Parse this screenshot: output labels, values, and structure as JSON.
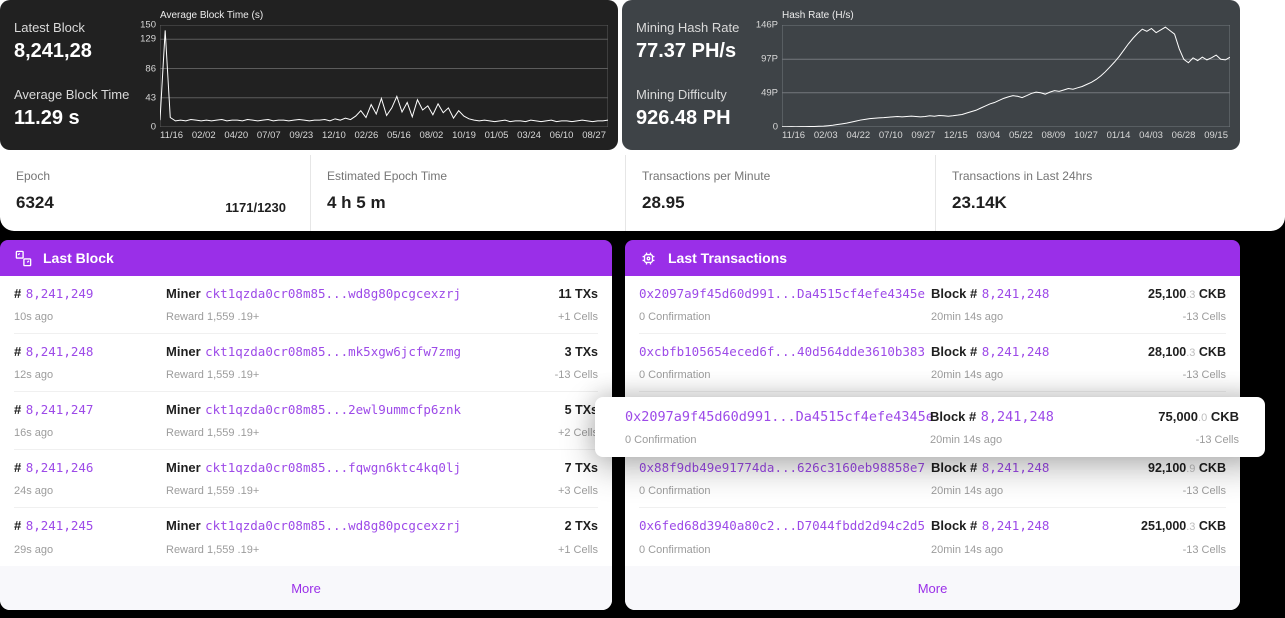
{
  "colors": {
    "accent_purple": "#9a2fe8",
    "link_purple": "#9d4ae8",
    "panel_dark": "#212121",
    "panel_slate": "#3e4347",
    "page_background": "#000000",
    "footer_band": "#f8f8fb"
  },
  "hero_left": {
    "stats": [
      {
        "label": "Latest Block",
        "value": "8,241,28"
      },
      {
        "label": "Average Block Time",
        "value": "11.29 s"
      }
    ]
  },
  "hero_right": {
    "stats": [
      {
        "label": "Mining Hash Rate",
        "value": "77.37 PH/s"
      },
      {
        "label": "Mining Difficulty",
        "value": "926.48 PH"
      }
    ]
  },
  "stats_bar": {
    "cells": [
      {
        "label": "Epoch",
        "value": "6324",
        "extra": "1171/1230"
      },
      {
        "label": "Estimated Epoch Time",
        "value": "4 h 5 m"
      },
      {
        "label": "Transactions per Minute",
        "value": "28.95"
      },
      {
        "label": "Transactions in Last 24hrs",
        "value": "23.14K"
      }
    ]
  },
  "last_block": {
    "title": "Last Block",
    "icon": "blocks-icon",
    "hash_prefix": "#",
    "miner_label": "Miner",
    "more_label": "More",
    "rows": [
      {
        "number": "8,241,249",
        "miner": "ckt1qzda0cr08m85...wd8g80pcgcexzrj",
        "txs": "11 TXs",
        "age": "10s ago",
        "reward": "Reward 1,559 .19+",
        "cells": "+1 Cells"
      },
      {
        "number": "8,241,248",
        "miner": "ckt1qzda0cr08m85...mk5xgw6jcfw7zmg",
        "txs": "3 TXs",
        "age": "12s ago",
        "reward": "Reward 1,559 .19+",
        "cells": "-13 Cells"
      },
      {
        "number": "8,241,247",
        "miner": "ckt1qzda0cr08m85...2ewl9ummcfp6znk",
        "txs": "5 TXs",
        "age": "16s ago",
        "reward": "Reward 1,559 .19+",
        "cells": "+2 Cells"
      },
      {
        "number": "8,241,246",
        "miner": "ckt1qzda0cr08m85...fqwgn6ktc4kq0lj",
        "txs": "7 TXs",
        "age": "24s ago",
        "reward": "Reward 1,559 .19+",
        "cells": "+3 Cells"
      },
      {
        "number": "8,241,245",
        "miner": "ckt1qzda0cr08m85...wd8g80pcgcexzrj",
        "txs": "2 TXs",
        "age": "29s ago",
        "reward": "Reward 1,559 .19+",
        "cells": "+1 Cells"
      }
    ]
  },
  "last_transactions": {
    "title": "Last Transactions",
    "icon": "transactions-icon",
    "block_label": "Block #",
    "more_label": "More",
    "rows": [
      {
        "hash": "0x2097a9f45d60d991...Da4515cf4efe4345e",
        "block": "8,241,248",
        "amount": "25,100",
        "amount_decimal": ".3",
        "unit": "CKB",
        "confirmation": "0 Confirmation",
        "age": "20min 14s ago",
        "cells": "-13 Cells"
      },
      {
        "hash": "0xcbfb105654eced6f...40d564dde3610b383",
        "block": "8,241,248",
        "amount": "28,100",
        "amount_decimal": ".3",
        "unit": "CKB",
        "confirmation": "0 Confirmation",
        "age": "20min 14s ago",
        "cells": "-13 Cells"
      },
      {
        "hash": "0x2097a9f45d60d991...Da4515cf4efe4345e",
        "block": "8,241,248",
        "amount": "75,000",
        "amount_decimal": ".0",
        "unit": "CKB",
        "confirmation": "0 Confirmation",
        "age": "20min 14s ago",
        "cells": "-13 Cells"
      },
      {
        "hash": "0x88f9db49e91774da...626c3160eb98858e7",
        "block": "8,241,248",
        "amount": "92,100",
        "amount_decimal": ".9",
        "unit": "CKB",
        "confirmation": "0 Confirmation",
        "age": "20min 14s ago",
        "cells": "-13 Cells"
      },
      {
        "hash": "0x6fed68d3940a80c2...D7044fbdd2d94c2d5",
        "block": "8,241,248",
        "amount": "251,000",
        "amount_decimal": ".3",
        "unit": "CKB",
        "confirmation": "0 Confirmation",
        "age": "20min 14s ago",
        "cells": "-13 Cells"
      }
    ],
    "overlay": {
      "hash": "0x2097a9f45d60d991...Da4515cf4efe4345e",
      "block": "8,241,248",
      "amount": "75,000",
      "amount_decimal": ".0",
      "unit": "CKB",
      "confirmation": "0 Confirmation",
      "age": "20min 14s ago",
      "cells": "-13 Cells"
    }
  },
  "chart_data": [
    {
      "type": "line",
      "title": "Average Block Time (s)",
      "ylabel": "seconds",
      "ymax": 150,
      "grid": "#5c5c5c",
      "line_color": "#ffffff",
      "legend": "none",
      "yticks": [
        {
          "label": "150",
          "v": 150
        },
        {
          "label": "129",
          "v": 129
        },
        {
          "label": "86",
          "v": 86
        },
        {
          "label": "43",
          "v": 43
        },
        {
          "label": "0",
          "v": 0
        }
      ],
      "xticks": [
        "11/16",
        "02/02",
        "04/20",
        "07/07",
        "09/23",
        "12/10",
        "02/26",
        "05/16",
        "08/02",
        "10/19",
        "01/05",
        "03/24",
        "06/10",
        "08/27"
      ],
      "values": [
        10,
        142,
        14,
        9,
        10,
        9,
        11,
        10,
        9,
        10,
        9,
        10,
        11,
        9,
        10,
        10,
        9,
        11,
        10,
        9,
        10,
        11,
        9,
        10,
        10,
        9,
        10,
        11,
        10,
        9,
        10,
        10,
        11,
        9,
        12,
        10,
        13,
        11,
        16,
        24,
        14,
        33,
        19,
        42,
        17,
        28,
        45,
        22,
        36,
        15,
        40,
        25,
        31,
        18,
        34,
        21,
        28,
        13,
        24,
        16,
        12,
        10,
        9,
        10,
        9,
        8,
        9,
        10,
        8,
        9,
        9,
        8,
        10,
        9,
        8,
        9,
        10,
        8,
        9,
        9,
        8,
        9,
        10,
        9,
        8,
        9,
        9,
        10
      ]
    },
    {
      "type": "line",
      "title": "Hash Rate (H/s)",
      "ylabel": "hash rate",
      "ymax": 146,
      "grid": "#73787d",
      "line_color": "#ffffff",
      "legend": "none",
      "yticks": [
        {
          "label": "146P",
          "v": 146
        },
        {
          "label": "97P",
          "v": 97
        },
        {
          "label": "49P",
          "v": 49
        },
        {
          "label": "0",
          "v": 0
        }
      ],
      "xticks": [
        "11/16",
        "02/03",
        "04/22",
        "07/10",
        "09/27",
        "12/15",
        "03/04",
        "05/22",
        "08/09",
        "10/27",
        "01/14",
        "04/03",
        "06/28",
        "09/15"
      ],
      "values": [
        0.5,
        0.5,
        0.6,
        0.5,
        0.6,
        0.6,
        0.7,
        0.8,
        1,
        1.2,
        1.8,
        2.5,
        3.5,
        4.5,
        5.5,
        7,
        8.5,
        10,
        11,
        12,
        12.5,
        13,
        13.5,
        14,
        14.5,
        15,
        14.5,
        15,
        15.5,
        15,
        14.5,
        15,
        16,
        15.5,
        16.5,
        16,
        15.5,
        16,
        17,
        18,
        20,
        22,
        24,
        27,
        30,
        33,
        35,
        38,
        41,
        43,
        45,
        44,
        42,
        45,
        48,
        50,
        49,
        47,
        50,
        52,
        51,
        53,
        55,
        54,
        56,
        58,
        61,
        64,
        68,
        73,
        79,
        86,
        93,
        101,
        110,
        119,
        127,
        134,
        140,
        137,
        141,
        135,
        139,
        143,
        138,
        133,
        112,
        97,
        92,
        99,
        95,
        100,
        96,
        99,
        103,
        97,
        96,
        100
      ]
    }
  ]
}
